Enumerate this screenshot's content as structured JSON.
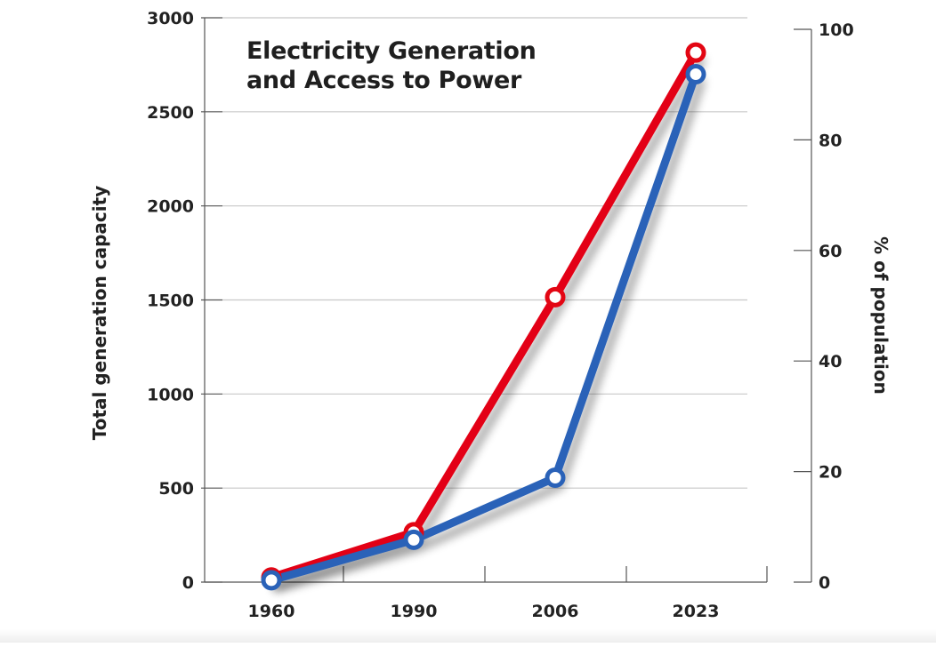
{
  "chart_data": {
    "type": "line",
    "title_lines": [
      "Electricity Generation",
      "and Access to Power"
    ],
    "categories": [
      "1960",
      "1990",
      "2006",
      "2023"
    ],
    "y_left": {
      "label": "Total generation capacity",
      "range": [
        0,
        3000
      ],
      "ticks": [
        0,
        500,
        1000,
        1500,
        2000,
        2500,
        3000
      ],
      "tick_labels": [
        "0",
        "500",
        "1000",
        "1500",
        "2000",
        "2500",
        "3000"
      ]
    },
    "y_right": {
      "label": "% of population",
      "range": [
        0,
        100
      ],
      "ticks": [
        0,
        20,
        40,
        60,
        80,
        100
      ],
      "tick_labels": [
        "0",
        "20",
        "40",
        "60",
        "80",
        "100"
      ]
    },
    "grid": true,
    "series": [
      {
        "axis": "left",
        "color": "#e30613",
        "values": [
          25,
          265,
          1515,
          2815
        ]
      },
      {
        "axis": "left",
        "color": "#2a62b8",
        "values": [
          10,
          225,
          555,
          2700
        ]
      }
    ]
  }
}
